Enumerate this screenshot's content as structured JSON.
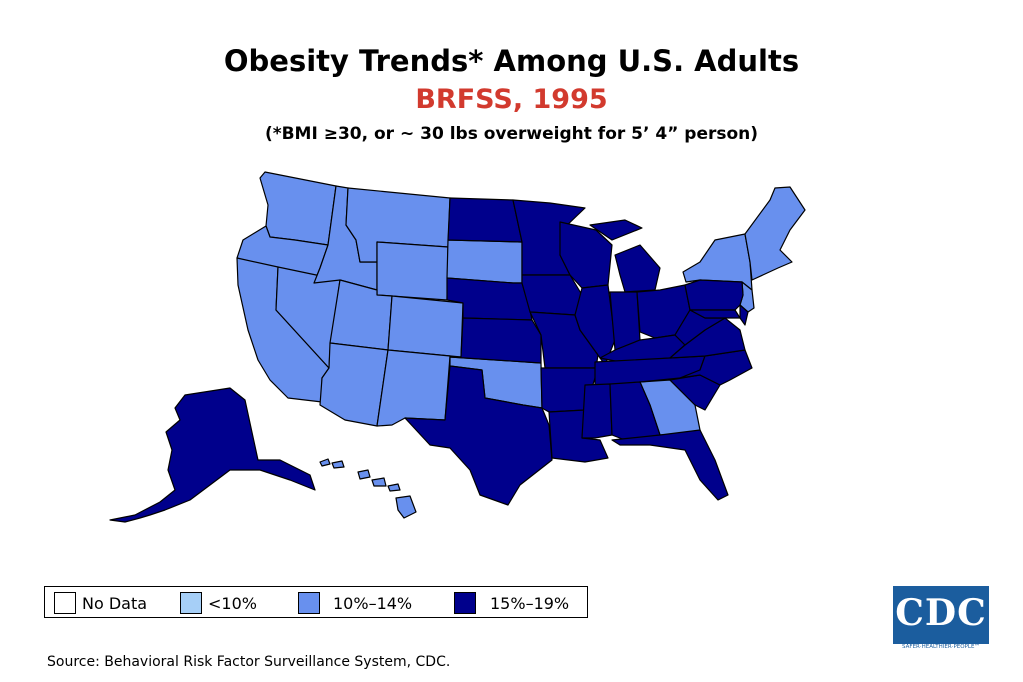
{
  "title": "Obesity Trends* Among U.S. Adults",
  "subtitle": "BRFSS, 1995",
  "note": "(*BMI ≥30, or ~ 30 lbs overweight for 5’ 4” person)",
  "legend": [
    {
      "label": "No Data",
      "color": "#ffffff"
    },
    {
      "label": "<10%",
      "color": "#a6cff7"
    },
    {
      "label": "10%–14%",
      "color": "#6890ee"
    },
    {
      "label": "15%–19%",
      "color": "#00008c"
    }
  ],
  "map": {
    "regions": [
      {
        "name": "washington",
        "category": "10%–14%"
      },
      {
        "name": "oregon",
        "category": "10%–14%"
      },
      {
        "name": "california",
        "category": "10%–14%"
      },
      {
        "name": "nevada",
        "category": "10%–14%"
      },
      {
        "name": "idaho",
        "category": "10%–14%"
      },
      {
        "name": "montana",
        "category": "10%–14%"
      },
      {
        "name": "wyoming",
        "category": "10%–14%"
      },
      {
        "name": "utah",
        "category": "10%–14%"
      },
      {
        "name": "colorado",
        "category": "10%–14%"
      },
      {
        "name": "arizona",
        "category": "10%–14%"
      },
      {
        "name": "new-mexico",
        "category": "10%–14%"
      },
      {
        "name": "south-dakota",
        "category": "10%–14%"
      },
      {
        "name": "oklahoma",
        "category": "10%–14%"
      },
      {
        "name": "georgia",
        "category": "10%–14%"
      },
      {
        "name": "new-york",
        "category": "10%–14%"
      },
      {
        "name": "new-england",
        "category": "10%–14%"
      },
      {
        "name": "new-jersey",
        "category": "10%–14%"
      },
      {
        "name": "hawaii",
        "category": "10%–14%"
      },
      {
        "name": "north-dakota",
        "category": "15%–19%"
      },
      {
        "name": "nebraska",
        "category": "15%–19%"
      },
      {
        "name": "kansas",
        "category": "15%–19%"
      },
      {
        "name": "texas",
        "category": "15%–19%"
      },
      {
        "name": "minnesota",
        "category": "15%–19%"
      },
      {
        "name": "iowa",
        "category": "15%–19%"
      },
      {
        "name": "missouri",
        "category": "15%–19%"
      },
      {
        "name": "arkansas",
        "category": "15%–19%"
      },
      {
        "name": "louisiana",
        "category": "15%–19%"
      },
      {
        "name": "wisconsin",
        "category": "15%–19%"
      },
      {
        "name": "illinois",
        "category": "15%–19%"
      },
      {
        "name": "michigan",
        "category": "15%–19%"
      },
      {
        "name": "indiana",
        "category": "15%–19%"
      },
      {
        "name": "ohio",
        "category": "15%–19%"
      },
      {
        "name": "kentucky",
        "category": "15%–19%"
      },
      {
        "name": "tennessee",
        "category": "15%–19%"
      },
      {
        "name": "mississippi",
        "category": "15%–19%"
      },
      {
        "name": "alabama",
        "category": "15%–19%"
      },
      {
        "name": "florida",
        "category": "15%–19%"
      },
      {
        "name": "south-carolina",
        "category": "15%–19%"
      },
      {
        "name": "north-carolina",
        "category": "15%–19%"
      },
      {
        "name": "virginia",
        "category": "15%–19%"
      },
      {
        "name": "west-virginia",
        "category": "15%–19%"
      },
      {
        "name": "pennsylvania",
        "category": "15%–19%"
      },
      {
        "name": "maryland",
        "category": "15%–19%"
      },
      {
        "name": "delaware",
        "category": "15%–19%"
      },
      {
        "name": "alaska",
        "category": "15%–19%"
      }
    ]
  },
  "source": "Source: Behavioral Risk Factor Surveillance System, CDC.",
  "logo": {
    "text": "CDC",
    "tagline": "SAFER·HEALTHIER·PEOPLE™"
  }
}
